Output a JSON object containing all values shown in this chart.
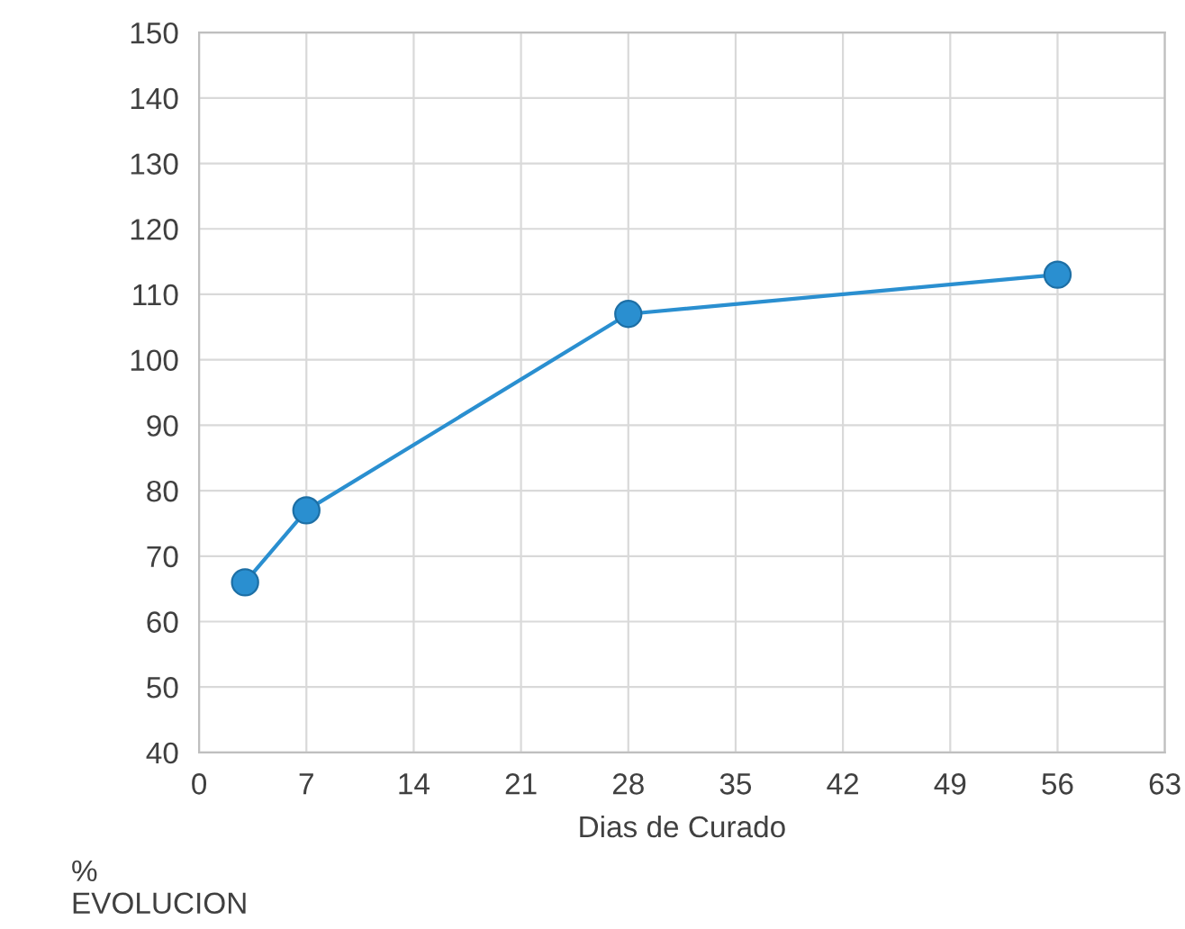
{
  "chart_data": {
    "type": "line",
    "xlabel": "Dias de Curado",
    "ylabel": "%\nEVOLUCION",
    "x": [
      3,
      7,
      28,
      56
    ],
    "series": [
      {
        "color": "#2a8fd0",
        "values": [
          66,
          77,
          107,
          113
        ]
      }
    ],
    "xlim": [
      0,
      63
    ],
    "xticks": [
      0,
      7,
      14,
      21,
      28,
      35,
      42,
      49,
      56,
      63
    ],
    "ylim": [
      40,
      150
    ],
    "yticks": [
      40,
      50,
      60,
      70,
      80,
      90,
      100,
      110,
      120,
      130,
      140,
      150
    ],
    "grid": true,
    "marker": "circle",
    "line_style": "solid"
  }
}
